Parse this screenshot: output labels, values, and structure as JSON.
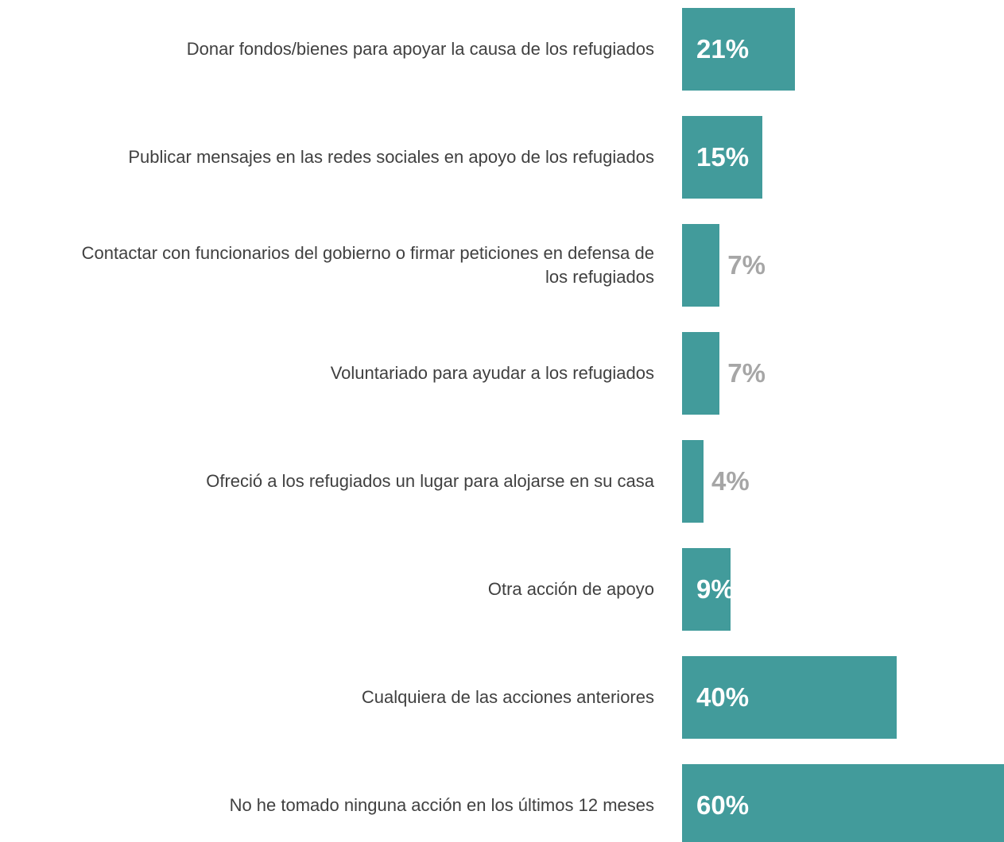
{
  "chart_data": {
    "type": "bar",
    "orientation": "horizontal",
    "categories": [
      "Donar fondos/bienes para apoyar la causa de los refugiados",
      "Publicar mensajes en las redes sociales en apoyo de los refugiados",
      "Contactar con funcionarios del gobierno o firmar peticiones en defensa de los refugiados",
      "Voluntariado para ayudar a los refugiados",
      "Ofreció a los refugiados un lugar para alojarse en su casa",
      "Otra acción de apoyo",
      "Cualquiera de las acciones anteriores",
      "No he tomado ninguna acción en los últimos 12 meses"
    ],
    "values": [
      21,
      15,
      7,
      7,
      4,
      9,
      40,
      60
    ],
    "value_labels": [
      "21%",
      "15%",
      "7%",
      "7%",
      "4%",
      "9%",
      "40%",
      "60%"
    ],
    "color": "#429b9b",
    "xlim": [
      0,
      60
    ]
  }
}
